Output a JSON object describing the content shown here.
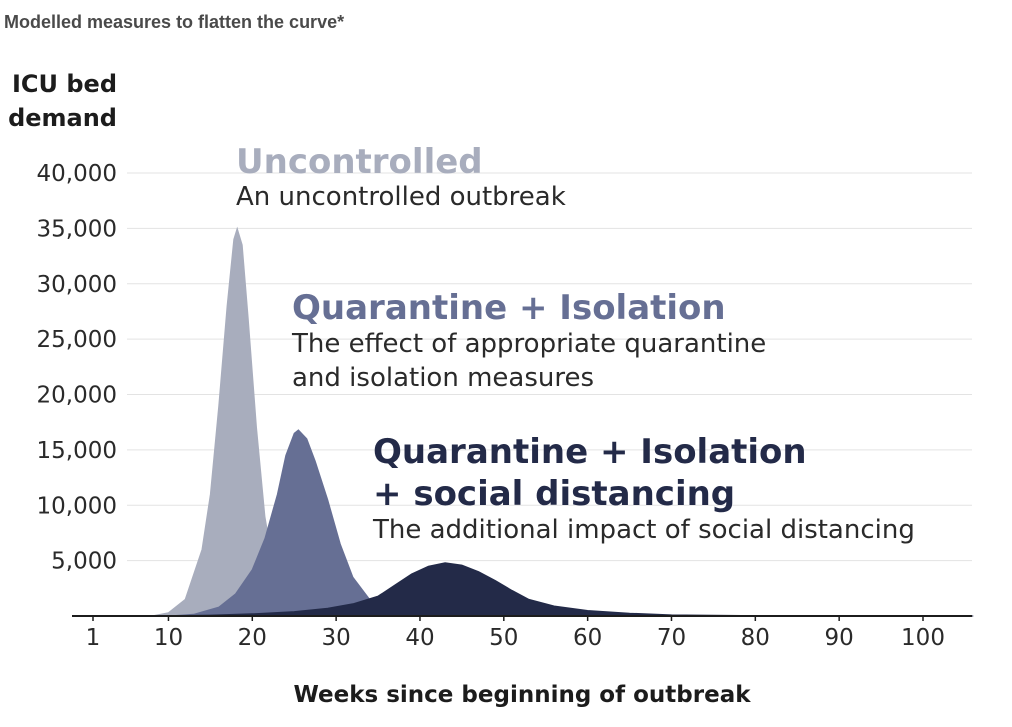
{
  "subtitle": "Modelled measures to flatten the curve*",
  "chart_data": {
    "type": "area",
    "ylabel_lines": [
      "ICU bed",
      "demand"
    ],
    "xlabel": "Weeks since beginning of outbreak",
    "xlim": [
      1,
      106
    ],
    "ylim": [
      0,
      40000
    ],
    "x_ticks": [
      1,
      10,
      20,
      30,
      40,
      50,
      60,
      70,
      80,
      90,
      100
    ],
    "y_ticks": [
      5000,
      10000,
      15000,
      20000,
      25000,
      30000,
      35000,
      40000
    ],
    "y_tick_labels": [
      "5,000",
      "10,000",
      "15,000",
      "20,000",
      "25,000",
      "30,000",
      "35,000",
      "40,000"
    ],
    "grid": true,
    "series": [
      {
        "name": "Uncontrolled",
        "description": "An uncontrolled outbreak",
        "color": "#a8adbd",
        "points": [
          [
            1,
            0
          ],
          [
            8,
            0
          ],
          [
            10,
            300
          ],
          [
            12,
            1500
          ],
          [
            14,
            6000
          ],
          [
            15,
            11000
          ],
          [
            16,
            19000
          ],
          [
            17,
            28000
          ],
          [
            17.8,
            34000
          ],
          [
            18.2,
            35000
          ],
          [
            18.8,
            33500
          ],
          [
            19.5,
            27000
          ],
          [
            20.5,
            17000
          ],
          [
            21.5,
            9000
          ],
          [
            22.5,
            4500
          ],
          [
            24,
            1800
          ],
          [
            26,
            500
          ],
          [
            28,
            100
          ],
          [
            31,
            0
          ]
        ]
      },
      {
        "name": "Quarantine + Isolation",
        "description_lines": [
          "The effect of appropriate quarantine",
          "and isolation measures"
        ],
        "color": "#666f94",
        "points": [
          [
            1,
            0
          ],
          [
            10,
            0
          ],
          [
            13,
            150
          ],
          [
            16,
            800
          ],
          [
            18,
            2000
          ],
          [
            20,
            4200
          ],
          [
            21.5,
            7000
          ],
          [
            23,
            11000
          ],
          [
            24,
            14500
          ],
          [
            25,
            16500
          ],
          [
            25.5,
            16800
          ],
          [
            26.5,
            16000
          ],
          [
            27.5,
            14000
          ],
          [
            29,
            10500
          ],
          [
            30.5,
            6500
          ],
          [
            32,
            3500
          ],
          [
            34,
            1500
          ],
          [
            36,
            600
          ],
          [
            40,
            150
          ],
          [
            45,
            0
          ]
        ]
      },
      {
        "name_lines": [
          "Quarantine + Isolation",
          "+ social distancing"
        ],
        "description": "The additional impact of social distancing",
        "color": "#232a48",
        "points": [
          [
            1,
            0
          ],
          [
            8,
            0
          ],
          [
            15,
            80
          ],
          [
            20,
            200
          ],
          [
            25,
            400
          ],
          [
            29,
            700
          ],
          [
            32,
            1100
          ],
          [
            35,
            1800
          ],
          [
            37,
            2800
          ],
          [
            39,
            3800
          ],
          [
            41,
            4500
          ],
          [
            43,
            4800
          ],
          [
            45,
            4600
          ],
          [
            47,
            4000
          ],
          [
            49,
            3200
          ],
          [
            51,
            2300
          ],
          [
            53,
            1500
          ],
          [
            56,
            900
          ],
          [
            60,
            500
          ],
          [
            65,
            250
          ],
          [
            70,
            100
          ],
          [
            80,
            40
          ],
          [
            90,
            15
          ],
          [
            100,
            5
          ],
          [
            106,
            0
          ]
        ]
      }
    ]
  }
}
